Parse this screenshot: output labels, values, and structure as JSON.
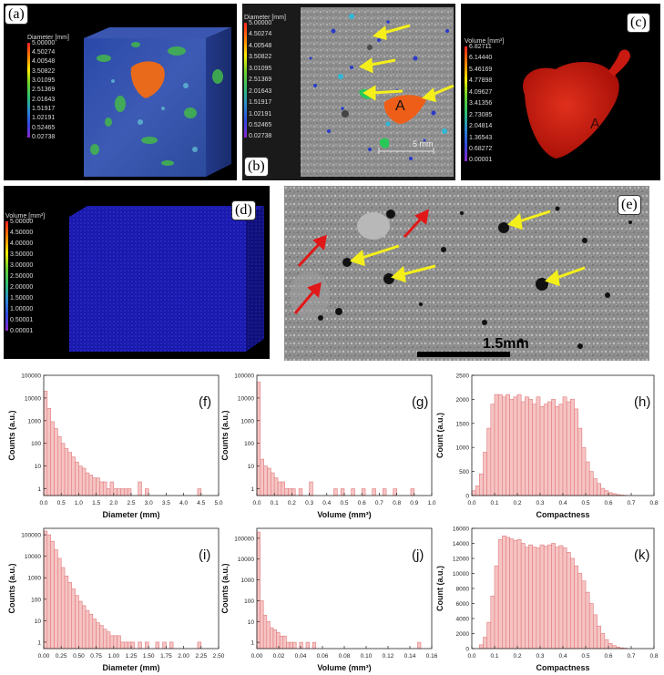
{
  "panels": {
    "a": {
      "tag": "(a)",
      "colorbar": {
        "title": "Diameter [mm]",
        "ticks": [
          "5.00000",
          "4.50274",
          "4.00548",
          "3.50822",
          "3.01095",
          "2.51369",
          "2.01643",
          "1.51917",
          "1.02191",
          "0.52465",
          "0.02738"
        ]
      }
    },
    "b": {
      "tag": "(b)",
      "label_A": "A",
      "scalebar": "5 mm",
      "colorbar": {
        "title": "Diameter [mm]",
        "ticks": [
          "5.00000",
          "4.50274",
          "4.00548",
          "3.50822",
          "3.01095",
          "2.51369",
          "2.01643",
          "1.51917",
          "1.02191",
          "0.52465",
          "0.02738"
        ]
      }
    },
    "c": {
      "tag": "(c)",
      "label_A": "A",
      "colorbar": {
        "title": "Volume [mm³]",
        "ticks": [
          "6.82711",
          "6.14440",
          "5.46169",
          "4.77898",
          "4.09627",
          "3.41356",
          "2.73085",
          "2.04814",
          "1.36543",
          "0.68272",
          "0.00001"
        ]
      }
    },
    "d": {
      "tag": "(d)",
      "colorbar": {
        "title": "Volume [mm³]",
        "ticks": [
          "5.00000",
          "4.50000",
          "4.00000",
          "3.50000",
          "3.00000",
          "2.50000",
          "2.00000",
          "1.50000",
          "1.00000",
          "0.50001",
          "0.00001"
        ]
      }
    },
    "e": {
      "tag": "(e)",
      "scalebar": "1.5mm"
    }
  },
  "chart_data": [
    {
      "id": "f",
      "type": "bar",
      "tag": "(f)",
      "xlabel": "Diameter (mm)",
      "ylabel": "Counts (a.u.)",
      "yscale": "log",
      "xlim": [
        0,
        5
      ],
      "ylim": [
        0.5,
        100000
      ],
      "xticks": [
        "0.0",
        "0.5",
        "1.0",
        "1.5",
        "2.0",
        "2.5",
        "3.0",
        "3.5",
        "4.0",
        "4.5",
        "5.0"
      ],
      "yticks": [
        "1",
        "10",
        "100",
        "1000",
        "10000",
        "100000"
      ],
      "bin_width": 0.1,
      "x": [
        0.05,
        0.15,
        0.25,
        0.35,
        0.45,
        0.55,
        0.65,
        0.75,
        0.85,
        0.95,
        1.05,
        1.15,
        1.25,
        1.35,
        1.45,
        1.55,
        1.65,
        1.75,
        1.85,
        1.95,
        2.05,
        2.15,
        2.25,
        2.35,
        2.45,
        2.75,
        2.95,
        4.45
      ],
      "values": [
        20000,
        3500,
        900,
        450,
        200,
        100,
        60,
        40,
        25,
        15,
        10,
        8,
        5,
        4,
        3,
        3,
        2,
        2,
        1,
        2,
        1,
        1,
        1,
        1,
        1,
        2,
        1,
        1
      ]
    },
    {
      "id": "g",
      "type": "bar",
      "tag": "(g)",
      "xlabel": "Volume (mm³)",
      "ylabel": "Counts (a.u.)",
      "yscale": "log",
      "xlim": [
        0,
        1
      ],
      "ylim": [
        0.5,
        100000
      ],
      "xticks": [
        "0.0",
        "0.1",
        "0.2",
        "0.3",
        "0.4",
        "0.5",
        "0.6",
        "0.7",
        "0.8",
        "0.9",
        "1.0"
      ],
      "yticks": [
        "1",
        "10",
        "100",
        "1000",
        "10000",
        "100000"
      ],
      "bin_width": 0.02,
      "x": [
        0.01,
        0.03,
        0.05,
        0.07,
        0.09,
        0.11,
        0.13,
        0.15,
        0.17,
        0.19,
        0.21,
        0.25,
        0.31,
        0.45,
        0.49,
        0.55,
        0.61,
        0.67,
        0.73,
        0.79,
        0.89
      ],
      "values": [
        50000,
        20,
        10,
        8,
        5,
        3,
        2,
        2,
        1,
        1,
        1,
        1,
        2,
        1,
        1,
        1,
        1,
        1,
        1,
        1,
        1
      ]
    },
    {
      "id": "h",
      "type": "bar",
      "tag": "(h)",
      "xlabel": "Compactness",
      "ylabel": "Count (a.u.)",
      "yscale": "linear",
      "xlim": [
        0,
        0.8
      ],
      "ylim": [
        0,
        2500
      ],
      "xticks": [
        "0.0",
        "0.1",
        "0.2",
        "0.3",
        "0.4",
        "0.5",
        "0.6",
        "0.7",
        "0.8"
      ],
      "yticks": [
        "0",
        "500",
        "1000",
        "1500",
        "2000",
        "2500"
      ],
      "bin_width": 0.0167,
      "x": [
        0.0083,
        0.025,
        0.0417,
        0.0583,
        0.075,
        0.0917,
        0.1083,
        0.125,
        0.1417,
        0.1583,
        0.175,
        0.1917,
        0.2083,
        0.225,
        0.2417,
        0.2583,
        0.275,
        0.2917,
        0.3083,
        0.325,
        0.3417,
        0.3583,
        0.375,
        0.3917,
        0.4083,
        0.425,
        0.4417,
        0.4583,
        0.475,
        0.4917,
        0.5083,
        0.525,
        0.5417,
        0.5583,
        0.575,
        0.5917,
        0.6083,
        0.625,
        0.6417,
        0.6583,
        0.675
      ],
      "values": [
        100,
        200,
        450,
        900,
        1400,
        1900,
        2100,
        2100,
        2050,
        2100,
        2000,
        2050,
        2100,
        1950,
        2050,
        2000,
        1900,
        2050,
        1850,
        1900,
        1950,
        2000,
        1850,
        1900,
        2050,
        1950,
        2000,
        1800,
        1400,
        1000,
        700,
        500,
        350,
        250,
        150,
        100,
        60,
        40,
        20,
        10,
        5
      ]
    },
    {
      "id": "i",
      "type": "bar",
      "tag": "(i)",
      "xlabel": "Diameter (mm)",
      "ylabel": "Counts (a.u.)",
      "yscale": "log",
      "xlim": [
        0,
        2.5
      ],
      "ylim": [
        0.5,
        200000
      ],
      "xticks": [
        "0.00",
        "0.25",
        "0.50",
        "0.75",
        "1.00",
        "1.25",
        "1.50",
        "1.75",
        "2.00",
        "2.25",
        "2.50"
      ],
      "yticks": [
        "1",
        "10",
        "100",
        "1000",
        "10000",
        "100000"
      ],
      "bin_width": 0.05,
      "x": [
        0.025,
        0.075,
        0.125,
        0.175,
        0.225,
        0.275,
        0.325,
        0.375,
        0.425,
        0.475,
        0.525,
        0.575,
        0.625,
        0.675,
        0.725,
        0.775,
        0.825,
        0.875,
        0.925,
        0.975,
        1.025,
        1.075,
        1.125,
        1.175,
        1.225,
        1.275,
        1.375,
        1.475,
        1.625,
        1.725,
        1.825,
        2.225
      ],
      "values": [
        150000,
        100000,
        50000,
        20000,
        8000,
        3000,
        1200,
        600,
        300,
        150,
        80,
        50,
        30,
        20,
        12,
        8,
        6,
        4,
        3,
        2,
        2,
        2,
        1,
        1,
        1,
        1,
        1,
        1,
        1,
        1,
        1,
        1
      ]
    },
    {
      "id": "j",
      "type": "bar",
      "tag": "(j)",
      "xlabel": "Volume (mm³)",
      "ylabel": "Counts (a.u.)",
      "yscale": "log",
      "xlim": [
        0,
        0.16
      ],
      "ylim": [
        0.5,
        300000
      ],
      "xticks": [
        "0.00",
        "0.02",
        "0.04",
        "0.06",
        "0.08",
        "0.10",
        "0.12",
        "0.14",
        "0.16"
      ],
      "yticks": [
        "1",
        "10",
        "100",
        "1000",
        "10000",
        "100000"
      ],
      "bin_width": 0.003,
      "x": [
        0.0015,
        0.0045,
        0.0075,
        0.0105,
        0.0135,
        0.0165,
        0.0195,
        0.0225,
        0.0255,
        0.0285,
        0.0315,
        0.0345,
        0.0405,
        0.0465,
        0.0525,
        0.1485
      ],
      "values": [
        200000,
        100,
        20,
        10,
        5,
        4,
        3,
        2,
        2,
        1,
        1,
        1,
        1,
        1,
        1,
        1
      ]
    },
    {
      "id": "k",
      "type": "bar",
      "tag": "(k)",
      "xlabel": "Compactness",
      "ylabel": "Count (a.u.)",
      "yscale": "linear",
      "xlim": [
        0,
        0.8
      ],
      "ylim": [
        0,
        16000
      ],
      "xticks": [
        "0.0",
        "0.1",
        "0.2",
        "0.3",
        "0.4",
        "0.5",
        "0.6",
        "0.7",
        "0.8"
      ],
      "yticks": [
        "0",
        "2000",
        "4000",
        "6000",
        "8000",
        "10000",
        "12000",
        "14000",
        "16000"
      ],
      "bin_width": 0.0167,
      "x": [
        0.0417,
        0.0583,
        0.075,
        0.0917,
        0.1083,
        0.125,
        0.1417,
        0.1583,
        0.175,
        0.1917,
        0.2083,
        0.225,
        0.2417,
        0.2583,
        0.275,
        0.2917,
        0.3083,
        0.325,
        0.3417,
        0.3583,
        0.375,
        0.3917,
        0.4083,
        0.425,
        0.4417,
        0.4583,
        0.475,
        0.4917,
        0.5083,
        0.525,
        0.5417,
        0.5583,
        0.575,
        0.5917,
        0.6083,
        0.625,
        0.6417,
        0.6583,
        0.675
      ],
      "values": [
        500,
        1500,
        3500,
        7000,
        11000,
        14500,
        15000,
        14800,
        14600,
        14400,
        14500,
        14000,
        13500,
        13800,
        13500,
        13400,
        13800,
        13600,
        13800,
        14000,
        13500,
        13700,
        13400,
        12800,
        12000,
        11000,
        10000,
        9000,
        7500,
        6000,
        4500,
        3000,
        2000,
        1200,
        700,
        400,
        200,
        100,
        50
      ]
    }
  ],
  "colors": {
    "bar_fill": "#f6c4c4",
    "bar_stroke": "#e07a7a",
    "arrow_yellow": "#f4ef1a",
    "arrow_red": "#e11818",
    "volume_red": "#d81a0c",
    "orange": "#e8581a"
  }
}
